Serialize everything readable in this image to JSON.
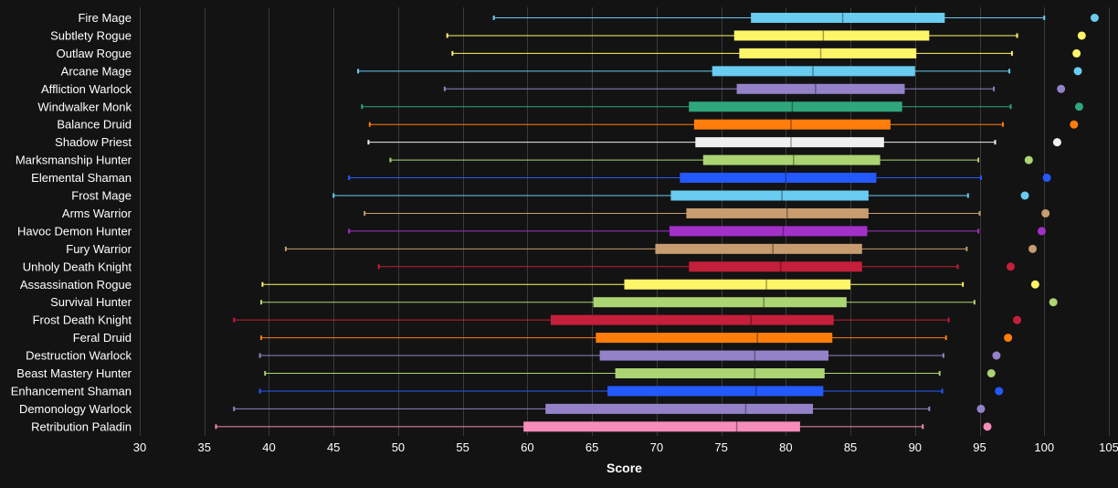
{
  "chart_data": {
    "type": "boxplot",
    "xlabel": "Score",
    "xlim": [
      30,
      105
    ],
    "xticks": [
      30,
      35,
      40,
      45,
      50,
      55,
      60,
      65,
      70,
      75,
      80,
      85,
      90,
      95,
      100,
      105
    ],
    "grid": true,
    "categories": [
      "Fire Mage",
      "Subtlety Rogue",
      "Outlaw Rogue",
      "Arcane Mage",
      "Affliction Warlock",
      "Windwalker Monk",
      "Balance Druid",
      "Shadow Priest",
      "Marksmanship Hunter",
      "Elemental Shaman",
      "Frost Mage",
      "Arms Warrior",
      "Havoc Demon Hunter",
      "Fury Warrior",
      "Unholy Death Knight",
      "Assassination Rogue",
      "Survival Hunter",
      "Frost Death Knight",
      "Feral Druid",
      "Destruction Warlock",
      "Beast Mastery Hunter",
      "Enhancement Shaman",
      "Demonology Warlock",
      "Retribution Paladin"
    ],
    "series": [
      {
        "values": [
          {
            "low": 57.4,
            "q1": 77.3,
            "median": 84.4,
            "q3": 92.3,
            "high": 100.0,
            "point": 103.9,
            "color": "#69ccf0"
          },
          {
            "low": 53.8,
            "q1": 76.0,
            "median": 82.9,
            "q3": 91.1,
            "high": 97.9,
            "point": 102.9,
            "color": "#fff569"
          },
          {
            "low": 54.2,
            "q1": 76.4,
            "median": 82.7,
            "q3": 90.1,
            "high": 97.5,
            "point": 102.5,
            "color": "#fff569"
          },
          {
            "low": 46.9,
            "q1": 74.3,
            "median": 82.1,
            "q3": 90.0,
            "high": 97.3,
            "point": 102.6,
            "color": "#69ccf0"
          },
          {
            "low": 53.6,
            "q1": 76.2,
            "median": 82.3,
            "q3": 89.2,
            "high": 96.1,
            "point": 101.3,
            "color": "#9482c9"
          },
          {
            "low": 47.2,
            "q1": 72.5,
            "median": 80.5,
            "q3": 89.0,
            "high": 97.4,
            "point": 102.7,
            "color": "#2fa67c"
          },
          {
            "low": 47.8,
            "q1": 72.9,
            "median": 80.4,
            "q3": 88.1,
            "high": 96.8,
            "point": 102.3,
            "color": "#ff7d0a"
          },
          {
            "low": 47.7,
            "q1": 73.0,
            "median": 80.4,
            "q3": 87.6,
            "high": 96.2,
            "point": 101.0,
            "color": "#f0f0f0"
          },
          {
            "low": 49.4,
            "q1": 73.6,
            "median": 80.6,
            "q3": 87.3,
            "high": 94.9,
            "point": 98.8,
            "color": "#abd473"
          },
          {
            "low": 46.2,
            "q1": 71.8,
            "median": 80.0,
            "q3": 87.0,
            "high": 95.1,
            "point": 100.2,
            "color": "#2459ff"
          },
          {
            "low": 45.0,
            "q1": 71.1,
            "median": 79.7,
            "q3": 86.4,
            "high": 94.1,
            "point": 98.5,
            "color": "#69ccf0"
          },
          {
            "low": 47.4,
            "q1": 72.3,
            "median": 80.1,
            "q3": 86.4,
            "high": 95.0,
            "point": 100.1,
            "color": "#c79c6e"
          },
          {
            "low": 46.2,
            "q1": 71.0,
            "median": 79.8,
            "q3": 86.3,
            "high": 94.9,
            "point": 99.8,
            "color": "#a330c9"
          },
          {
            "low": 41.3,
            "q1": 69.9,
            "median": 79.0,
            "q3": 85.9,
            "high": 94.0,
            "point": 99.1,
            "color": "#c79c6e"
          },
          {
            "low": 48.5,
            "q1": 72.5,
            "median": 79.6,
            "q3": 85.9,
            "high": 93.3,
            "point": 97.4,
            "color": "#c41f3b"
          },
          {
            "low": 39.5,
            "q1": 67.5,
            "median": 78.5,
            "q3": 85.0,
            "high": 93.7,
            "point": 99.3,
            "color": "#fff569"
          },
          {
            "low": 39.4,
            "q1": 65.1,
            "median": 78.3,
            "q3": 84.7,
            "high": 94.6,
            "point": 100.7,
            "color": "#abd473"
          },
          {
            "low": 37.3,
            "q1": 61.8,
            "median": 77.3,
            "q3": 83.7,
            "high": 92.6,
            "point": 97.9,
            "color": "#c41f3b"
          },
          {
            "low": 39.4,
            "q1": 65.3,
            "median": 77.8,
            "q3": 83.6,
            "high": 92.4,
            "point": 97.2,
            "color": "#ff7d0a"
          },
          {
            "low": 39.3,
            "q1": 65.6,
            "median": 77.6,
            "q3": 83.3,
            "high": 92.2,
            "point": 96.3,
            "color": "#9482c9"
          },
          {
            "low": 39.7,
            "q1": 66.8,
            "median": 77.6,
            "q3": 83.0,
            "high": 91.9,
            "point": 95.9,
            "color": "#abd473"
          },
          {
            "low": 39.3,
            "q1": 66.2,
            "median": 77.7,
            "q3": 82.9,
            "high": 92.1,
            "point": 96.5,
            "color": "#2459ff"
          },
          {
            "low": 37.3,
            "q1": 61.4,
            "median": 76.9,
            "q3": 82.1,
            "high": 91.1,
            "point": 95.1,
            "color": "#9482c9"
          },
          {
            "low": 35.9,
            "q1": 59.7,
            "median": 76.2,
            "q3": 81.1,
            "high": 90.6,
            "point": 95.6,
            "color": "#f58cba"
          }
        ]
      }
    ]
  }
}
